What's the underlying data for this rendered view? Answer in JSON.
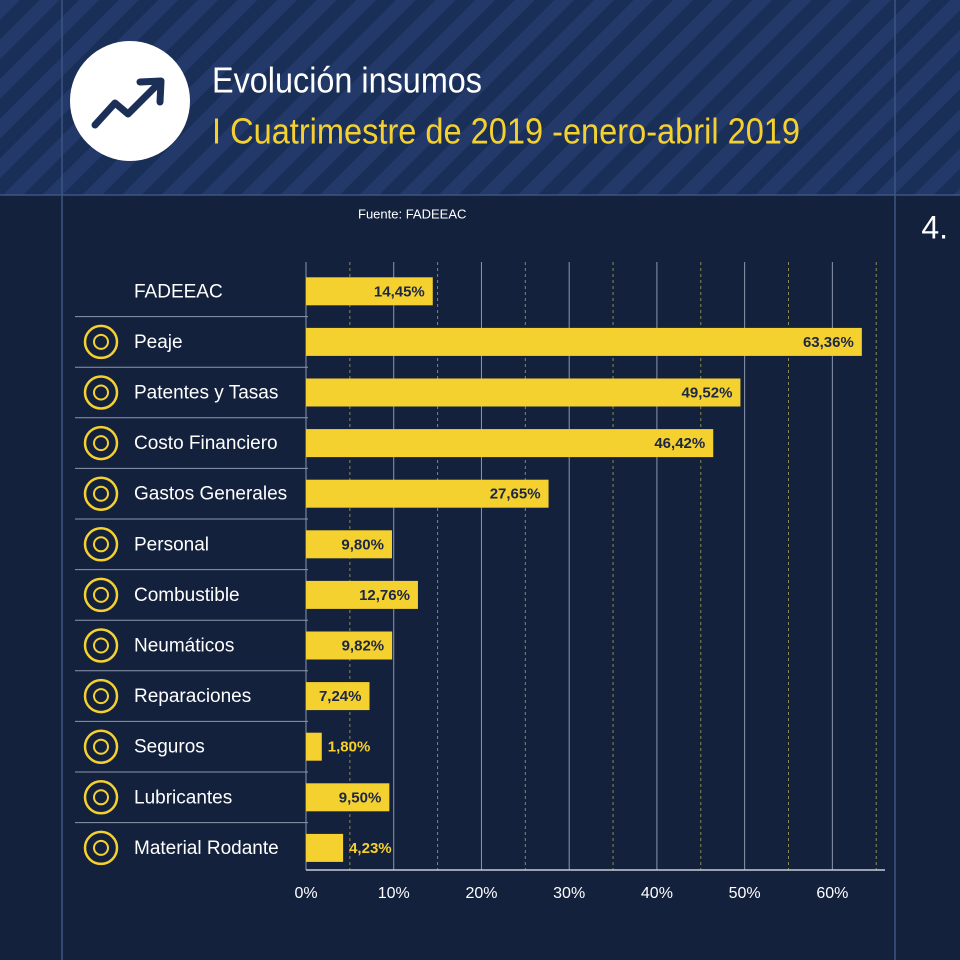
{
  "page_number": "4.",
  "chart_data": {
    "type": "hbar",
    "title": "Evolución insumos",
    "subtitle": "I Cuatrimestre de 2019 -enero-abril 2019",
    "source": "Fuente: FADEEAC",
    "categories": [
      "FADEEAC",
      "Peaje",
      "Patentes y Tasas",
      "Costo Financiero",
      "Gastos Generales",
      "Personal",
      "Combustible",
      "Neumáticos",
      "Reparaciones",
      "Seguros",
      "Lubricantes",
      "Material Rodante"
    ],
    "values": [
      14.45,
      63.36,
      49.52,
      46.42,
      27.65,
      9.8,
      12.76,
      9.82,
      7.24,
      1.8,
      9.5,
      4.23
    ],
    "value_labels": [
      "14,45%",
      "63,36%",
      "49,52%",
      "46,42%",
      "27,65%",
      "9,80%",
      "12,76%",
      "9,82%",
      "7,24%",
      "1,80%",
      "9,50%",
      "4,23%"
    ],
    "color": "#f5d130",
    "xlim": [
      0,
      66
    ],
    "xticks": [
      {
        "value": 0,
        "label": "0%"
      },
      {
        "value": 10,
        "label": "10%"
      },
      {
        "value": 20,
        "label": "20%"
      },
      {
        "value": 30,
        "label": "30%"
      },
      {
        "value": 40,
        "label": "40%"
      },
      {
        "value": 50,
        "label": "50%"
      },
      {
        "value": 60,
        "label": "60%"
      }
    ],
    "minor_xticks": [
      5,
      15,
      25,
      35,
      45,
      55,
      65
    ],
    "grid": true
  }
}
